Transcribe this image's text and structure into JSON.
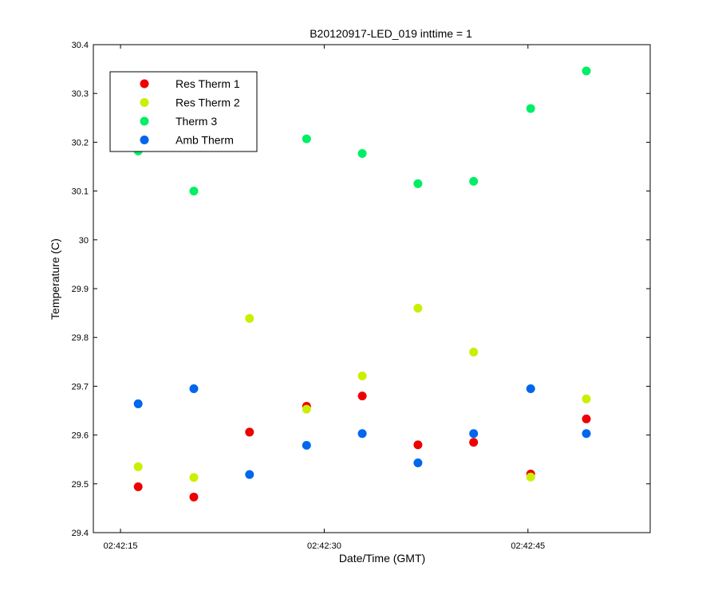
{
  "chart_data": {
    "type": "scatter",
    "title": "B20120917-LED_019 inttime = 1",
    "xlabel": "Date/Time (GMT)",
    "ylabel": "Temperature (C)",
    "x_unit": "time",
    "x_tick_labels": [
      "02:42:15",
      "02:42:30",
      "02:42:45"
    ],
    "x_tick_times": [
      "02:42:15",
      "02:42:30",
      "02:42:45"
    ],
    "xlim": [
      "02:42:13",
      "02:42:54"
    ],
    "ylim": [
      29.4,
      30.4
    ],
    "y_tick_labels": [
      "29.4",
      "29.5",
      "29.6",
      "29.7",
      "29.8",
      "29.9",
      "30",
      "30.1",
      "30.2",
      "30.3",
      "30.4"
    ],
    "grid": false,
    "legend_position": "top-left",
    "x": [
      "02:42:16.3",
      "02:42:20.4",
      "02:42:24.5",
      "02:42:28.7",
      "02:42:32.8",
      "02:42:36.9",
      "02:42:41.0",
      "02:42:45.2",
      "02:42:49.3"
    ],
    "series": [
      {
        "name": "Res Therm 1",
        "color": "#ee0000",
        "values": [
          29.494,
          29.473,
          29.606,
          29.659,
          29.68,
          29.58,
          29.585,
          29.52,
          29.633
        ]
      },
      {
        "name": "Res Therm 2",
        "color": "#ccee00",
        "values": [
          29.535,
          29.513,
          29.839,
          29.653,
          29.721,
          29.86,
          29.77,
          29.514,
          29.674
        ]
      },
      {
        "name": "Therm 3",
        "color": "#00ee66",
        "values": [
          30.182,
          30.1,
          null,
          30.207,
          30.177,
          30.115,
          30.12,
          30.269,
          30.346
        ]
      },
      {
        "name": "Amb Therm",
        "color": "#0066ee",
        "values": [
          29.664,
          29.695,
          29.519,
          29.579,
          29.603,
          29.543,
          29.603,
          29.695,
          29.603
        ]
      }
    ]
  }
}
